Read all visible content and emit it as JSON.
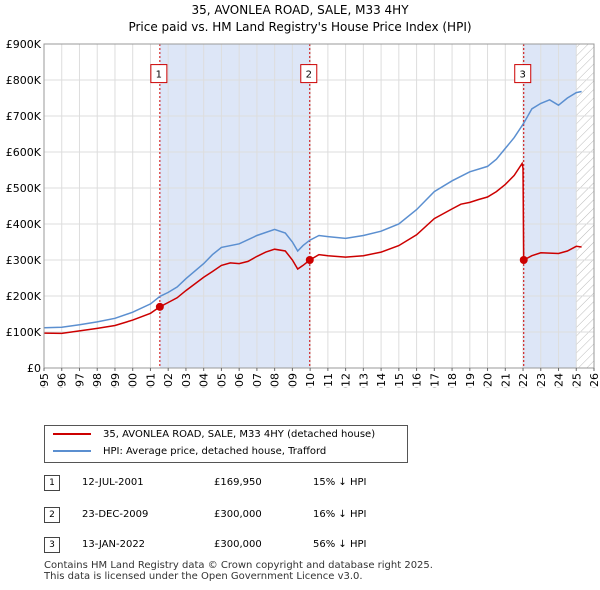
{
  "title": {
    "line1": "35, AVONLEA ROAD, SALE, M33 4HY",
    "line2": "Price paid vs. HM Land Registry's House Price Index (HPI)"
  },
  "chart_data": {
    "type": "line",
    "xlim": [
      1995,
      2026
    ],
    "ylim": [
      0,
      900000
    ],
    "y_ticks": [
      {
        "value": 0,
        "label": "£0"
      },
      {
        "value": 100000,
        "label": "£100K"
      },
      {
        "value": 200000,
        "label": "£200K"
      },
      {
        "value": 300000,
        "label": "£300K"
      },
      {
        "value": 400000,
        "label": "£400K"
      },
      {
        "value": 500000,
        "label": "£500K"
      },
      {
        "value": 600000,
        "label": "£600K"
      },
      {
        "value": 700000,
        "label": "£700K"
      },
      {
        "value": 800000,
        "label": "£800K"
      },
      {
        "value": 900000,
        "label": "£900K"
      }
    ],
    "x_ticks": [
      "1995",
      "1996",
      "1997",
      "1998",
      "1999",
      "2000",
      "2001",
      "2002",
      "2003",
      "2004",
      "2005",
      "2006",
      "2007",
      "2008",
      "2009",
      "2010",
      "2011",
      "2012",
      "2013",
      "2014",
      "2015",
      "2016",
      "2017",
      "2018",
      "2019",
      "2020",
      "2021",
      "2022",
      "2023",
      "2024",
      "2025",
      "2026"
    ],
    "future_hatch_from": 2025.0,
    "colors": {
      "property": "#cc0000",
      "hpi": "#5b8fd0",
      "shade": "#dde6f7",
      "grid": "#dddddd"
    },
    "series": [
      {
        "name": "35, AVONLEA ROAD, SALE, M33 4HY (detached house)",
        "points": [
          [
            1995.0,
            97000
          ],
          [
            1996.0,
            96000
          ],
          [
            1997.0,
            103000
          ],
          [
            1998.0,
            110000
          ],
          [
            1999.0,
            118000
          ],
          [
            2000.0,
            133000
          ],
          [
            2001.0,
            152000
          ],
          [
            2001.53,
            169950
          ],
          [
            2002.0,
            182000
          ],
          [
            2002.5,
            195000
          ],
          [
            2003.0,
            215000
          ],
          [
            2004.0,
            252000
          ],
          [
            2004.5,
            268000
          ],
          [
            2005.0,
            285000
          ],
          [
            2005.5,
            292000
          ],
          [
            2006.0,
            290000
          ],
          [
            2006.5,
            296000
          ],
          [
            2007.0,
            310000
          ],
          [
            2007.5,
            322000
          ],
          [
            2008.0,
            330000
          ],
          [
            2008.6,
            325000
          ],
          [
            2009.0,
            300000
          ],
          [
            2009.3,
            275000
          ],
          [
            2009.6,
            285000
          ],
          [
            2009.98,
            300000
          ],
          [
            2010.5,
            315000
          ],
          [
            2011.0,
            312000
          ],
          [
            2012.0,
            308000
          ],
          [
            2013.0,
            312000
          ],
          [
            2014.0,
            322000
          ],
          [
            2015.0,
            340000
          ],
          [
            2016.0,
            370000
          ],
          [
            2017.0,
            415000
          ],
          [
            2018.0,
            442000
          ],
          [
            2018.5,
            455000
          ],
          [
            2019.0,
            460000
          ],
          [
            2019.5,
            468000
          ],
          [
            2020.0,
            475000
          ],
          [
            2020.5,
            490000
          ],
          [
            2021.0,
            510000
          ],
          [
            2021.5,
            535000
          ],
          [
            2021.95,
            568000
          ],
          [
            2022.0,
            555000
          ],
          [
            2022.04,
            300000
          ],
          [
            2022.5,
            312000
          ],
          [
            2023.0,
            320000
          ],
          [
            2024.0,
            318000
          ],
          [
            2024.5,
            325000
          ],
          [
            2025.0,
            338000
          ],
          [
            2025.3,
            336000
          ]
        ]
      },
      {
        "name": "HPI: Average price, detached house, Trafford",
        "points": [
          [
            1995.0,
            112000
          ],
          [
            1996.0,
            113000
          ],
          [
            1997.0,
            120000
          ],
          [
            1998.0,
            128000
          ],
          [
            1999.0,
            138000
          ],
          [
            2000.0,
            155000
          ],
          [
            2001.0,
            178000
          ],
          [
            2001.53,
            199000
          ],
          [
            2002.0,
            210000
          ],
          [
            2002.5,
            225000
          ],
          [
            2003.0,
            248000
          ],
          [
            2004.0,
            290000
          ],
          [
            2004.5,
            315000
          ],
          [
            2005.0,
            335000
          ],
          [
            2006.0,
            345000
          ],
          [
            2007.0,
            368000
          ],
          [
            2008.0,
            385000
          ],
          [
            2008.6,
            375000
          ],
          [
            2009.0,
            350000
          ],
          [
            2009.3,
            325000
          ],
          [
            2009.6,
            340000
          ],
          [
            2009.98,
            355000
          ],
          [
            2010.5,
            368000
          ],
          [
            2011.0,
            365000
          ],
          [
            2012.0,
            360000
          ],
          [
            2013.0,
            368000
          ],
          [
            2014.0,
            380000
          ],
          [
            2015.0,
            400000
          ],
          [
            2016.0,
            440000
          ],
          [
            2017.0,
            490000
          ],
          [
            2018.0,
            520000
          ],
          [
            2019.0,
            545000
          ],
          [
            2020.0,
            560000
          ],
          [
            2020.5,
            580000
          ],
          [
            2021.0,
            610000
          ],
          [
            2021.5,
            640000
          ],
          [
            2022.04,
            680000
          ],
          [
            2022.5,
            720000
          ],
          [
            2023.0,
            735000
          ],
          [
            2023.5,
            745000
          ],
          [
            2024.0,
            730000
          ],
          [
            2024.5,
            750000
          ],
          [
            2025.0,
            765000
          ],
          [
            2025.3,
            768000
          ]
        ]
      }
    ],
    "events": [
      {
        "label": "1",
        "x": 2001.53,
        "y": 169950,
        "label_y": 815000
      },
      {
        "label": "2",
        "x": 2009.98,
        "y": 300000,
        "label_y": 815000
      },
      {
        "label": "3",
        "x": 2022.04,
        "y": 300000,
        "label_y": 815000
      }
    ],
    "shaded_ranges": [
      [
        2001.53,
        2009.98
      ],
      [
        2022.04,
        2025.0
      ]
    ]
  },
  "legend": {
    "property_label": "35, AVONLEA ROAD, SALE, M33 4HY (detached house)",
    "hpi_label": "HPI: Average price, detached house, Trafford"
  },
  "transactions": [
    {
      "num": "1",
      "date": "12-JUL-2001",
      "price": "£169,950",
      "hpi": "15% ↓ HPI"
    },
    {
      "num": "2",
      "date": "23-DEC-2009",
      "price": "£300,000",
      "hpi": "16% ↓ HPI"
    },
    {
      "num": "3",
      "date": "13-JAN-2022",
      "price": "£300,000",
      "hpi": "56% ↓ HPI"
    }
  ],
  "footer": {
    "line1": "Contains HM Land Registry data © Crown copyright and database right 2025.",
    "line2": "This data is licensed under the Open Government Licence v3.0."
  }
}
